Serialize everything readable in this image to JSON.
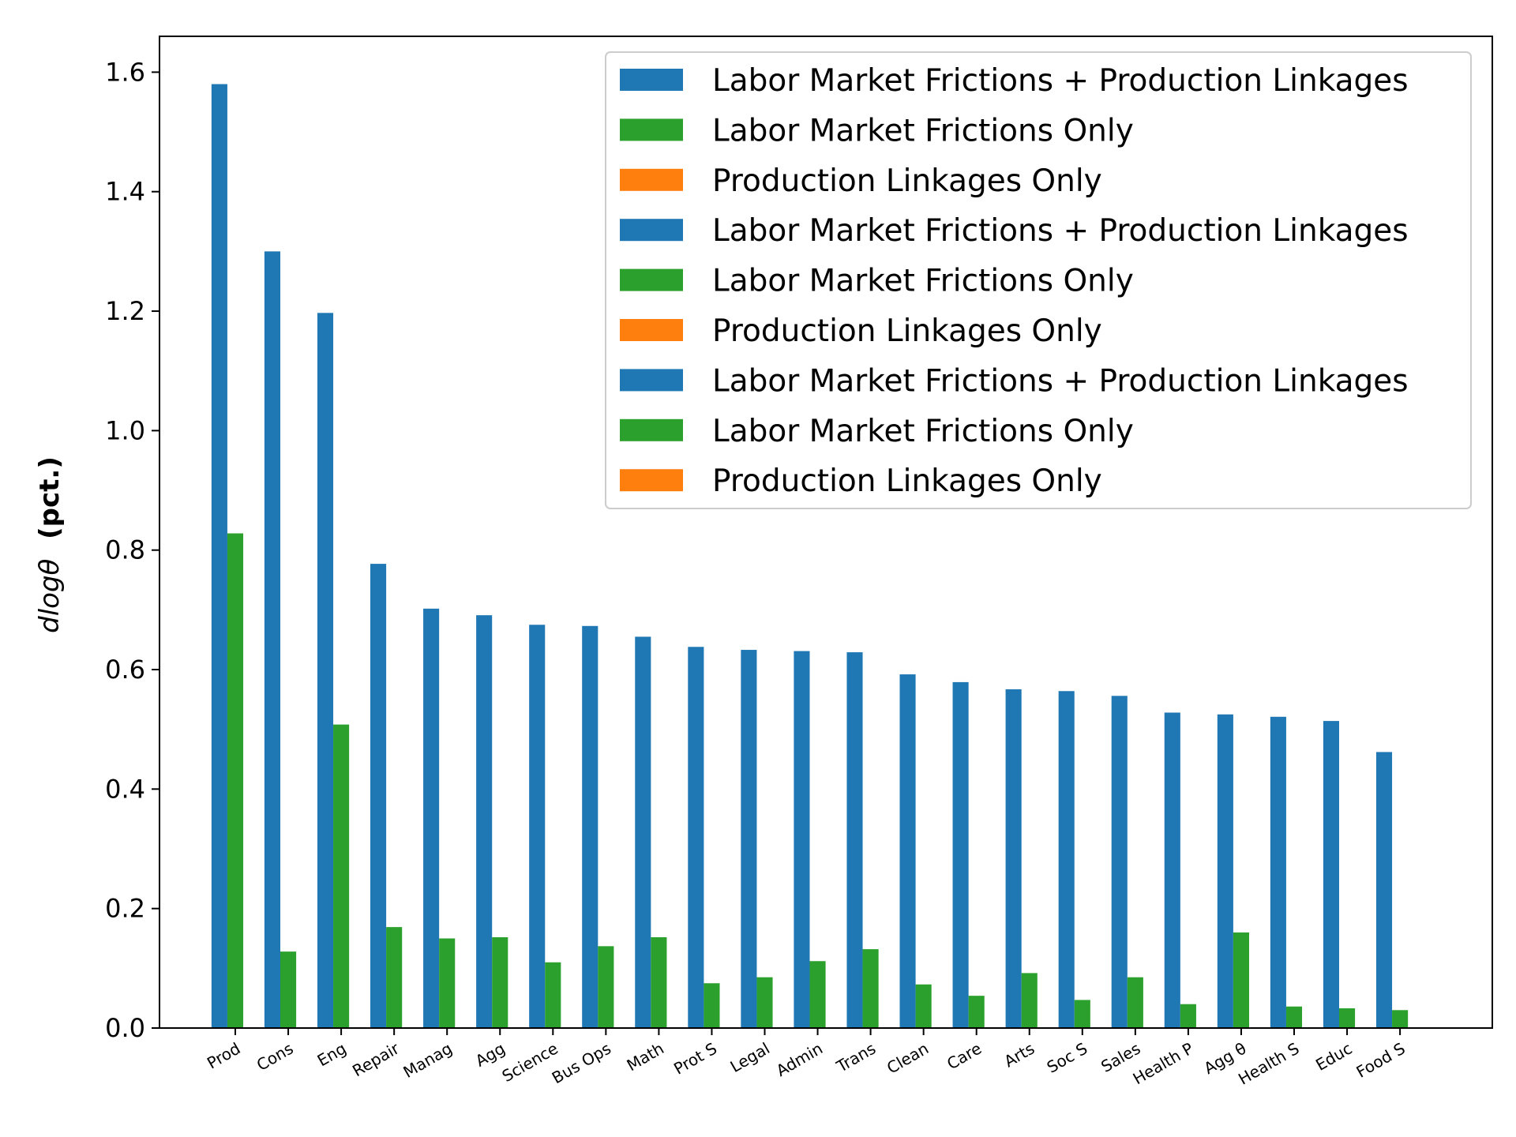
{
  "chart_data": {
    "type": "bar",
    "ylabel_prefix": "dlogθ",
    "ylabel_bold": "(pct.)",
    "ylim": [
      0,
      1.66
    ],
    "yticks": [
      "0.0",
      "0.2",
      "0.4",
      "0.6",
      "0.8",
      "1.0",
      "1.2",
      "1.4",
      "1.6"
    ],
    "ytick_values": [
      0,
      0.2,
      0.4,
      0.6,
      0.8,
      1.0,
      1.2,
      1.4,
      1.6
    ],
    "grid": false,
    "legend_position": "top-right",
    "categories": [
      "Prod",
      "Cons",
      "Eng",
      "Repair",
      "Manag",
      "Agg",
      "Science",
      "Bus Ops",
      "Math",
      "Prot S",
      "Legal",
      "Admin",
      "Trans",
      "Clean",
      "Care",
      "Arts",
      "Soc S",
      "Sales",
      "Health P",
      "Agg θ",
      "Health S",
      "Educ",
      "Food S"
    ],
    "series": [
      {
        "name": "Labor Market Frictions + Production Linkages",
        "color": "#1f77b4",
        "values": [
          1.58,
          1.3,
          1.197,
          0.777,
          0.702,
          0.691,
          0.675,
          0.673,
          0.655,
          0.638,
          0.633,
          0.631,
          0.629,
          0.592,
          0.579,
          0.567,
          0.564,
          0.556,
          0.528,
          0.525,
          0.521,
          0.514,
          0.462
        ]
      },
      {
        "name": "Labor Market Frictions Only",
        "color": "#2ca02c",
        "values": [
          0.828,
          0.128,
          0.508,
          0.169,
          0.15,
          0.152,
          0.11,
          0.137,
          0.152,
          0.075,
          0.085,
          0.112,
          0.132,
          0.073,
          0.054,
          0.092,
          0.047,
          0.085,
          0.04,
          0.16,
          0.036,
          0.033,
          0.03
        ]
      },
      {
        "name": "Production Linkages Only",
        "color": "#ff7f0e",
        "values": [
          0,
          0,
          0,
          0,
          0,
          0,
          0,
          0,
          0,
          0,
          0,
          0,
          0,
          0,
          0,
          0,
          0,
          0,
          0,
          0,
          0,
          0,
          0
        ]
      }
    ],
    "legend_entries": [
      {
        "label": "Labor Market Frictions + Production Linkages",
        "color": "#1f77b4"
      },
      {
        "label": "Labor Market Frictions Only",
        "color": "#2ca02c"
      },
      {
        "label": "Production Linkages Only",
        "color": "#ff7f0e"
      },
      {
        "label": "Labor Market Frictions + Production Linkages",
        "color": "#1f77b4"
      },
      {
        "label": "Labor Market Frictions Only",
        "color": "#2ca02c"
      },
      {
        "label": "Production Linkages Only",
        "color": "#ff7f0e"
      },
      {
        "label": "Labor Market Frictions + Production Linkages",
        "color": "#1f77b4"
      },
      {
        "label": "Labor Market Frictions Only",
        "color": "#2ca02c"
      },
      {
        "label": "Production Linkages Only",
        "color": "#ff7f0e"
      }
    ]
  }
}
